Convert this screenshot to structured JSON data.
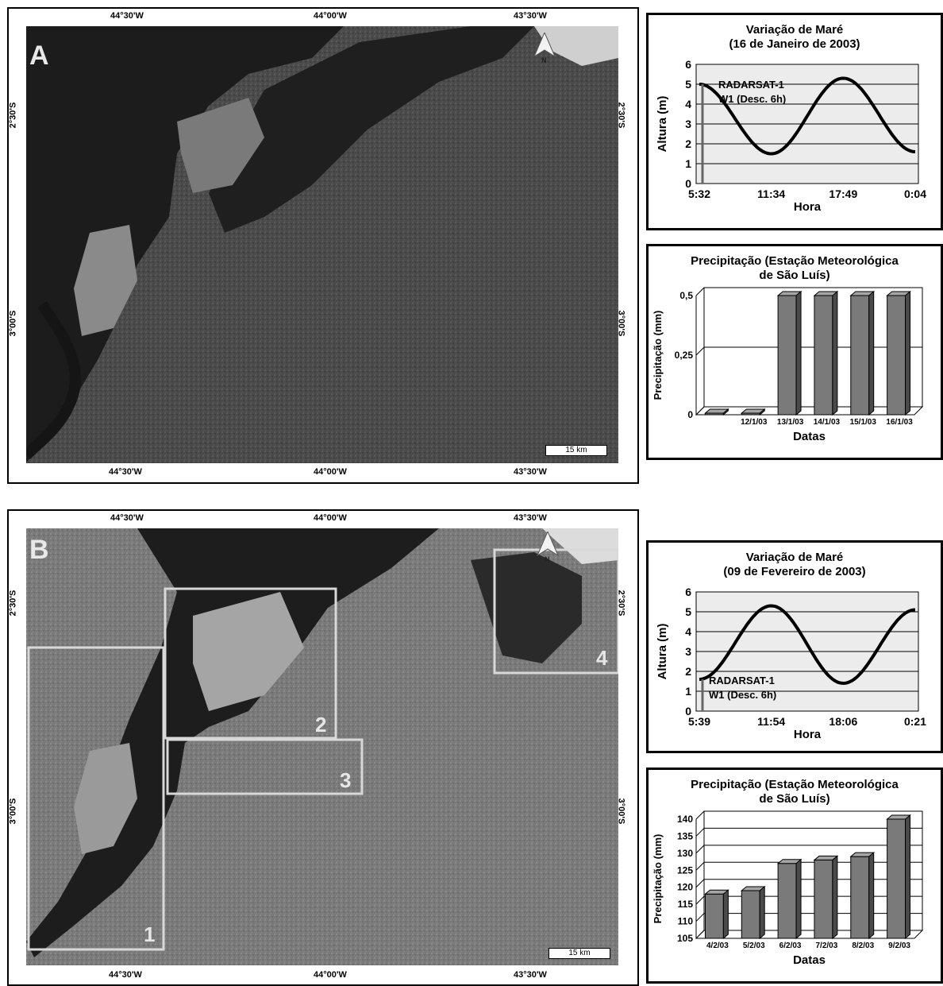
{
  "panel_a": {
    "letter": "A",
    "lon_top": [
      "44°30'W",
      "44°00'W",
      "43°30'W"
    ],
    "lon_bottom": [
      "44°30'W",
      "44°00'W",
      "43°30'W"
    ],
    "lat_left": [
      "2°30'S",
      "3°00'S"
    ],
    "lat_right": [
      "2°30'S",
      "3°00'S"
    ],
    "north": "N",
    "scale": "15 km"
  },
  "panel_b": {
    "letter": "B",
    "lon_top": [
      "44°30'W",
      "44°00'W",
      "43°30'W"
    ],
    "lon_bottom": [
      "44°30'W",
      "44°00'W",
      "43°30'W"
    ],
    "lat_left": [
      "2°30'S",
      "3°00'S"
    ],
    "lat_right": [
      "2°30'S",
      "3°00'S"
    ],
    "north": "N",
    "scale": "15 km",
    "boxes": [
      "1",
      "2",
      "3",
      "4"
    ]
  },
  "chart_data": [
    {
      "type": "line",
      "title": "Variação de Maré\n(16 de Janeiro de 2003)",
      "xlabel": "Hora",
      "ylabel": "Altura (m)",
      "xticklabels": [
        "5:32",
        "11:34",
        "17:49",
        "0:04"
      ],
      "ylim": [
        0,
        6
      ],
      "yticks": [
        0,
        1,
        2,
        3,
        4,
        5,
        6
      ],
      "x": [
        0,
        1,
        2,
        3
      ],
      "y": [
        5.0,
        1.5,
        5.3,
        1.6
      ],
      "annotation": [
        "RADARSAT-1",
        "W1 (Desc. 6h)"
      ],
      "grid": true
    },
    {
      "type": "bar",
      "title": "Precipitação (Estação Meteorológica\nde São Luís)",
      "xlabel": "Datas",
      "ylabel": "Precipitação (mm)",
      "categories": [
        "",
        "12/1/03",
        "13/1/03",
        "14/1/03",
        "15/1/03",
        "16/1/03"
      ],
      "values": [
        0,
        0,
        0.5,
        0.5,
        0.5,
        0.5
      ],
      "yticklabels": [
        "0",
        "0,25",
        "0,5"
      ],
      "ylim": [
        0,
        0.5
      ],
      "grid": true
    },
    {
      "type": "line",
      "title": "Variação de Maré\n(09 de Fevereiro de 2003)",
      "xlabel": "Hora",
      "ylabel": "Altura (m)",
      "xticklabels": [
        "5:39",
        "11:54",
        "18:06",
        "0:21"
      ],
      "ylim": [
        0,
        6
      ],
      "yticks": [
        0,
        1,
        2,
        3,
        4,
        5,
        6
      ],
      "x": [
        0,
        1,
        2,
        3
      ],
      "y": [
        1.6,
        5.3,
        1.4,
        5.1
      ],
      "annotation": [
        "RADARSAT-1",
        "W1 (Desc. 6h)"
      ],
      "grid": true
    },
    {
      "type": "bar",
      "title": "Precipitação (Estação Meteorológica\nde São Luís)",
      "xlabel": "Datas",
      "ylabel": "Precipitação (mm)",
      "categories": [
        "4/2/03",
        "5/2/03",
        "6/2/03",
        "7/2/03",
        "8/2/03",
        "9/2/03"
      ],
      "values": [
        118,
        119,
        127,
        128,
        129,
        140
      ],
      "yticks": [
        105,
        110,
        115,
        120,
        125,
        130,
        135,
        140
      ],
      "ylim": [
        105,
        140
      ],
      "grid": true
    }
  ]
}
